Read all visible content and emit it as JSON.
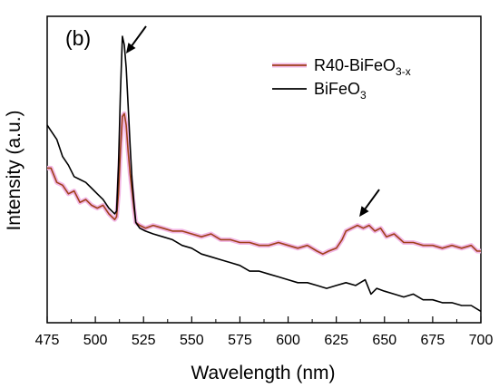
{
  "chart_data": {
    "type": "line",
    "panel_label": "(b)",
    "title": "",
    "xlabel": "Wavelength (nm)",
    "ylabel": "Intensity (a.u.)",
    "xlim": [
      475,
      700
    ],
    "ylim": [
      0,
      100
    ],
    "x_ticks": [
      475,
      500,
      525,
      550,
      575,
      600,
      625,
      650,
      675,
      700
    ],
    "y_ticks_shown": false,
    "grid": false,
    "legend_position": "top-right",
    "series": [
      {
        "name": "R40-BiFeO",
        "name_sub": "3-x",
        "color": "#a0401a",
        "halo_color": "#f2b8e6",
        "points": [
          [
            475,
            54
          ],
          [
            477,
            54
          ],
          [
            480,
            49
          ],
          [
            483,
            48
          ],
          [
            486,
            45
          ],
          [
            489,
            46
          ],
          [
            492,
            42
          ],
          [
            495,
            43
          ],
          [
            498,
            41
          ],
          [
            501,
            40
          ],
          [
            504,
            41
          ],
          [
            507,
            38
          ],
          [
            510,
            36
          ],
          [
            511,
            37
          ],
          [
            512,
            45
          ],
          [
            513,
            60
          ],
          [
            514,
            72
          ],
          [
            515,
            73
          ],
          [
            516,
            69
          ],
          [
            517,
            60
          ],
          [
            518,
            52
          ],
          [
            519,
            46
          ],
          [
            520,
            40
          ],
          [
            521,
            35
          ],
          [
            523,
            34
          ],
          [
            526,
            33
          ],
          [
            530,
            34
          ],
          [
            535,
            33
          ],
          [
            540,
            32
          ],
          [
            545,
            32
          ],
          [
            550,
            31
          ],
          [
            555,
            30
          ],
          [
            560,
            31
          ],
          [
            565,
            29
          ],
          [
            570,
            29
          ],
          [
            575,
            28
          ],
          [
            580,
            28
          ],
          [
            585,
            27
          ],
          [
            590,
            27
          ],
          [
            595,
            28
          ],
          [
            600,
            27
          ],
          [
            605,
            26
          ],
          [
            610,
            27
          ],
          [
            615,
            25
          ],
          [
            618,
            24
          ],
          [
            621,
            25
          ],
          [
            625,
            26
          ],
          [
            628,
            29
          ],
          [
            630,
            32
          ],
          [
            633,
            33
          ],
          [
            636,
            34
          ],
          [
            639,
            33
          ],
          [
            642,
            34
          ],
          [
            645,
            32
          ],
          [
            648,
            33
          ],
          [
            651,
            30
          ],
          [
            655,
            31
          ],
          [
            660,
            28
          ],
          [
            665,
            28
          ],
          [
            670,
            27
          ],
          [
            675,
            27
          ],
          [
            680,
            26
          ],
          [
            685,
            27
          ],
          [
            690,
            26
          ],
          [
            695,
            27
          ],
          [
            698,
            25
          ],
          [
            700,
            25
          ]
        ]
      },
      {
        "name": "BiFeO",
        "name_sub": "3",
        "color": "#000000",
        "points": [
          [
            475,
            69
          ],
          [
            477,
            67
          ],
          [
            480,
            64
          ],
          [
            483,
            58
          ],
          [
            486,
            55
          ],
          [
            489,
            51
          ],
          [
            492,
            50
          ],
          [
            495,
            49
          ],
          [
            498,
            47
          ],
          [
            501,
            45
          ],
          [
            504,
            43
          ],
          [
            507,
            40
          ],
          [
            510,
            38
          ],
          [
            511,
            39
          ],
          [
            512,
            55
          ],
          [
            513,
            80
          ],
          [
            514,
            100
          ],
          [
            515,
            97
          ],
          [
            516,
            89
          ],
          [
            517,
            76
          ],
          [
            518,
            62
          ],
          [
            519,
            50
          ],
          [
            520,
            42
          ],
          [
            521,
            35
          ],
          [
            523,
            33
          ],
          [
            526,
            32
          ],
          [
            530,
            31
          ],
          [
            535,
            30
          ],
          [
            540,
            29
          ],
          [
            545,
            27
          ],
          [
            550,
            26
          ],
          [
            555,
            24
          ],
          [
            560,
            23
          ],
          [
            565,
            22
          ],
          [
            570,
            21
          ],
          [
            575,
            20
          ],
          [
            580,
            18
          ],
          [
            585,
            18
          ],
          [
            590,
            17
          ],
          [
            595,
            16
          ],
          [
            600,
            15
          ],
          [
            605,
            14
          ],
          [
            610,
            14
          ],
          [
            615,
            13
          ],
          [
            620,
            12
          ],
          [
            625,
            13
          ],
          [
            630,
            14
          ],
          [
            635,
            13
          ],
          [
            640,
            15
          ],
          [
            643,
            10
          ],
          [
            646,
            12
          ],
          [
            650,
            11
          ],
          [
            655,
            10
          ],
          [
            660,
            9
          ],
          [
            665,
            10
          ],
          [
            670,
            8
          ],
          [
            675,
            8
          ],
          [
            680,
            7
          ],
          [
            685,
            7
          ],
          [
            690,
            6
          ],
          [
            695,
            6
          ],
          [
            700,
            4
          ]
        ]
      }
    ],
    "annotations": [
      {
        "type": "arrow",
        "target": [
          515,
          94
        ]
      },
      {
        "type": "arrow",
        "target": [
          636,
          37
        ]
      }
    ]
  }
}
